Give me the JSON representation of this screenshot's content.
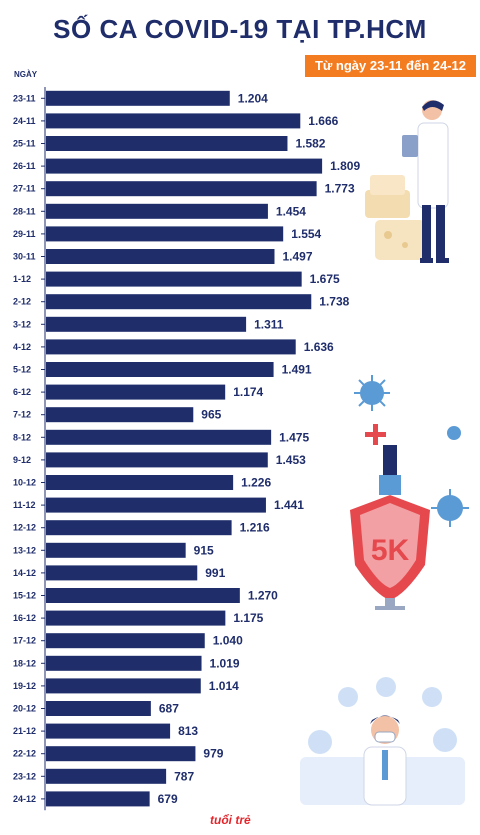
{
  "header": {
    "title": "SỐ CA COVID-19 TẠI TP.HCM",
    "subtitle": "Từ ngày 23-11 đến 24-12",
    "axis_unit": "NGÀY"
  },
  "brand": {
    "logo_text": "tuổi trẻ"
  },
  "colors": {
    "bar": "#1f2d6b",
    "accent": "#f47c20",
    "title": "#1f2d6b"
  },
  "chart_data": {
    "type": "bar",
    "orientation": "horizontal",
    "title": "SỐ CA COVID-19 TẠI TP.HCM",
    "subtitle": "Từ ngày 23-11 đến 24-12",
    "ylabel": "NGÀY",
    "xlim": [
      0,
      1900
    ],
    "grid": false,
    "categories": [
      "23-11",
      "24-11",
      "25-11",
      "26-11",
      "27-11",
      "28-11",
      "29-11",
      "30-11",
      "1-12",
      "2-12",
      "3-12",
      "4-12",
      "5-12",
      "6-12",
      "7-12",
      "8-12",
      "9-12",
      "10-12",
      "11-12",
      "12-12",
      "13-12",
      "14-12",
      "15-12",
      "16-12",
      "17-12",
      "18-12",
      "19-12",
      "20-12",
      "21-12",
      "22-12",
      "23-12",
      "24-12"
    ],
    "values": [
      1204,
      1666,
      1582,
      1809,
      1773,
      1454,
      1554,
      1497,
      1675,
      1738,
      1311,
      1636,
      1491,
      1174,
      965,
      1475,
      1453,
      1226,
      1441,
      1216,
      915,
      991,
      1270,
      1175,
      1040,
      1019,
      1014,
      687,
      813,
      979,
      787,
      679
    ],
    "value_labels": [
      "1.204",
      "1.666",
      "1.582",
      "1.809",
      "1.773",
      "1.454",
      "1.554",
      "1.497",
      "1.675",
      "1.738",
      "1.311",
      "1.636",
      "1.491",
      "1.174",
      "965",
      "1.475",
      "1.453",
      "1.226",
      "1.441",
      "1.216",
      "915",
      "991",
      "1.270",
      "1.175",
      "1.040",
      "1.019",
      "1.014",
      "687",
      "813",
      "979",
      "787",
      "679"
    ]
  }
}
